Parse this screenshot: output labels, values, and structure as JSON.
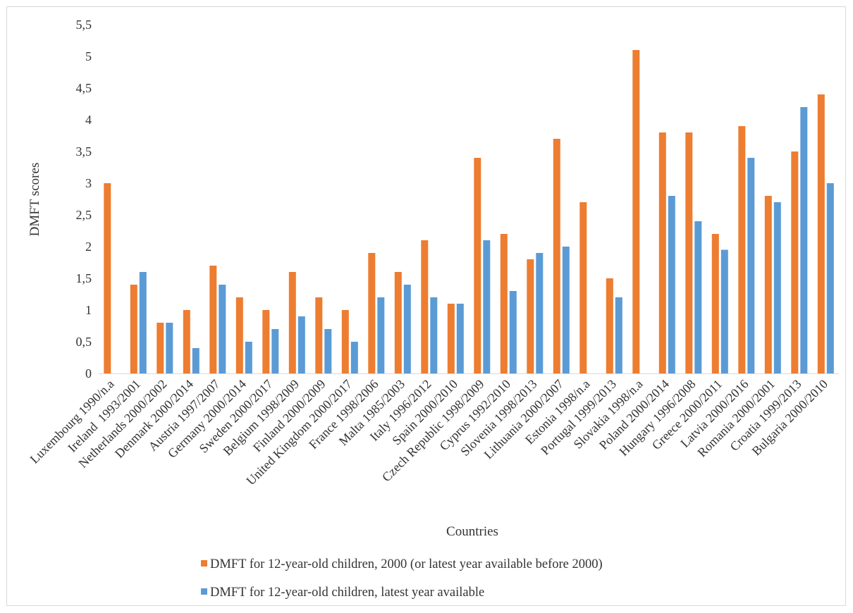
{
  "chart_data": {
    "type": "bar",
    "xlabel": "Countries",
    "ylabel": "DMFT scores",
    "ylim": [
      0,
      5.5
    ],
    "yticks": [
      "0",
      "0,5",
      "1",
      "1,5",
      "2",
      "2,5",
      "3",
      "3,5",
      "4",
      "4,5",
      "5",
      "5,5"
    ],
    "legend_position": "bottom",
    "grid": false,
    "categories": [
      "Luxembourg 1990/n.a",
      "Ireland  1993/2001",
      "Netherlands 2000/2002",
      "Denmark 2000/2014",
      "Austria 1997/2007",
      "Germany 2000/2014",
      "Sweden 2000/2017",
      "Belgium 1998/2009",
      "Finland 2000/2009",
      "United Kingdom 2000/2017",
      "France 1998/2006",
      "Malta 1985/2003",
      "Italy 1996/2012",
      "Spain 2000/2010",
      "Czech Republic 1998/2009",
      "Cyprus 1992/2010",
      "Slovenia 1998/2013",
      "Lithuania 2000/2007",
      "Estonia 1998/n.a",
      "Portugal 1999/2013",
      "Slovakia 1998/n.a",
      "Poland 2000/2014",
      "Hungary 1996/2008",
      "Greece 2000/2011",
      "Latvia 2000/2016",
      "Romania 2000/2001",
      "Croatia 1999/2013",
      "Bulgaria 2000/2010"
    ],
    "series": [
      {
        "name": "DMFT for 12-year-old children, 2000 (or latest year available before 2000)",
        "color": "#ed7d31",
        "values": [
          3.0,
          1.4,
          0.8,
          1.0,
          1.7,
          1.2,
          1.0,
          1.6,
          1.2,
          1.0,
          1.9,
          1.6,
          2.1,
          1.1,
          3.4,
          2.2,
          1.8,
          3.7,
          2.7,
          1.5,
          5.1,
          3.8,
          3.8,
          2.2,
          3.9,
          2.8,
          3.5,
          4.4
        ]
      },
      {
        "name": "DMFT for 12-year-old children, latest year available",
        "color": "#5b9bd5",
        "values": [
          null,
          1.6,
          0.8,
          0.4,
          1.4,
          0.5,
          0.7,
          0.9,
          0.7,
          0.5,
          1.2,
          1.4,
          1.2,
          1.1,
          2.1,
          1.3,
          1.9,
          2.0,
          null,
          1.2,
          null,
          2.8,
          2.4,
          1.95,
          3.4,
          2.7,
          4.2,
          3.0
        ]
      }
    ]
  }
}
